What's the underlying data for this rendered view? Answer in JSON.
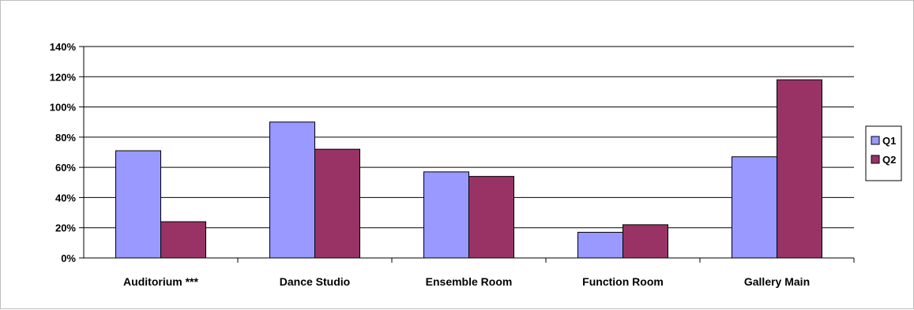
{
  "chart_data": {
    "type": "bar",
    "categories": [
      "Auditorium ***",
      "Dance Studio",
      "Ensemble Room",
      "Function Room",
      "Gallery Main"
    ],
    "series": [
      {
        "name": "Q1",
        "values": [
          71,
          90,
          57,
          17,
          67
        ],
        "color": "#9999ff"
      },
      {
        "name": "Q2",
        "values": [
          24,
          72,
          54,
          22,
          118
        ],
        "color": "#993366"
      }
    ],
    "yticks": [
      "0%",
      "20%",
      "40%",
      "60%",
      "80%",
      "100%",
      "120%",
      "140%"
    ],
    "ylim": [
      0,
      140
    ],
    "title": "",
    "xlabel": "",
    "ylabel": "",
    "grid": true,
    "legend_position": "right"
  }
}
